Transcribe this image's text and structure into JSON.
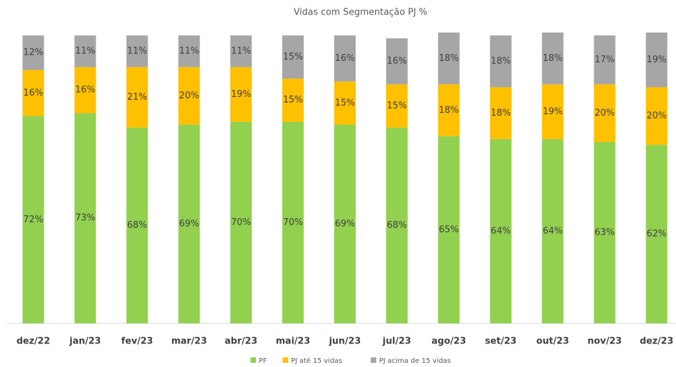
{
  "chart_data": {
    "type": "stacked_bar",
    "title": "Vidas com Segmentação PJ %",
    "categories": [
      "dez/22",
      "jan/23",
      "fev/23",
      "mar/23",
      "abr/23",
      "mai/23",
      "jun/23",
      "jul/23",
      "ago/23",
      "set/23",
      "out/23",
      "nov/23",
      "dez/23"
    ],
    "series": [
      {
        "name": "PF",
        "color": "#92d050",
        "values": [
          72,
          73,
          68,
          69,
          70,
          70,
          69,
          68,
          65,
          64,
          64,
          63,
          62
        ],
        "value_labels": [
          "72%",
          "73%",
          "68%",
          "69%",
          "70%",
          "70%",
          "69%",
          "68%",
          "65%",
          "64%",
          "64%",
          "63%",
          "62%"
        ]
      },
      {
        "name": "PJ até 15 vidas",
        "color": "#ffc000",
        "values": [
          16,
          16,
          21,
          20,
          19,
          15,
          15,
          15,
          18,
          18,
          19,
          20,
          20
        ],
        "value_labels": [
          "16%",
          "16%",
          "21%",
          "20%",
          "19%",
          "15%",
          "15%",
          "15%",
          "18%",
          "18%",
          "19%",
          "20%",
          "20%"
        ]
      },
      {
        "name": "PJ acima de 15 vidas",
        "color": "#a6a6a6",
        "values": [
          12,
          11,
          11,
          11,
          11,
          15,
          16,
          16,
          18,
          18,
          18,
          17,
          19
        ],
        "value_labels": [
          "12%",
          "11%",
          "11%",
          "11%",
          "11%",
          "15%",
          "16%",
          "16%",
          "18%",
          "18%",
          "18%",
          "17%",
          "19%"
        ]
      }
    ],
    "legend": "bottom"
  }
}
